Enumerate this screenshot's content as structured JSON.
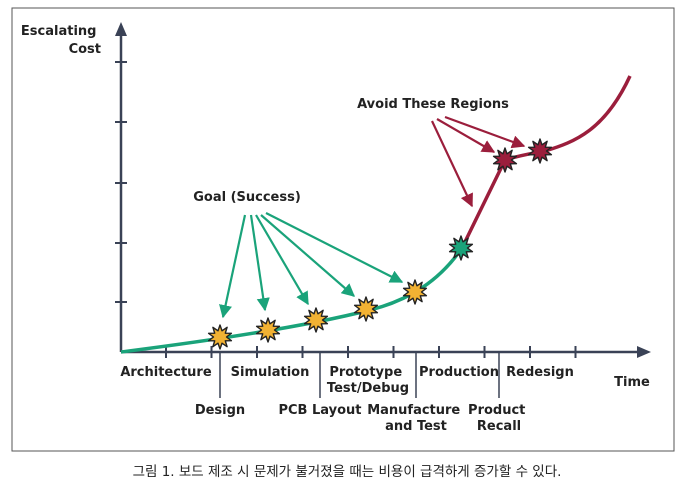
{
  "figure": {
    "y_axis_label": [
      "Escalating",
      "Cost"
    ],
    "x_axis_label": "Time",
    "caption": "그림 1. 보드 제조 시 문제가 불거졌을 때는 비용이 급격하게 증가할 수 있다.",
    "goal_label": "Goal (Success)",
    "avoid_label": "Avoid These Regions",
    "phases_upper": [
      {
        "text": [
          "Architecture"
        ]
      },
      {
        "text": [
          "Simulation"
        ]
      },
      {
        "text": [
          "Prototype",
          "Test/Debug"
        ]
      },
      {
        "text": [
          "Production"
        ]
      },
      {
        "text": [
          "Redesign"
        ]
      }
    ],
    "phases_lower": [
      {
        "text": [
          "Design"
        ]
      },
      {
        "text": [
          "PCB Layout"
        ]
      },
      {
        "text": [
          "Manufacture",
          "and Test"
        ]
      },
      {
        "text": [
          "Product",
          "Recall"
        ]
      }
    ],
    "colors": {
      "axis": "#3a4256",
      "success_curve": "#1aa37a",
      "danger_curve": "#9b1e3c",
      "goal_marker": "#f2b233",
      "transition_marker": "#1aa37a",
      "avoid_marker": "#9b1e3c",
      "frame": "#555555"
    },
    "markers": [
      {
        "kind": "goal"
      },
      {
        "kind": "goal"
      },
      {
        "kind": "goal"
      },
      {
        "kind": "goal"
      },
      {
        "kind": "goal"
      },
      {
        "kind": "transition"
      },
      {
        "kind": "avoid"
      },
      {
        "kind": "avoid"
      }
    ]
  }
}
